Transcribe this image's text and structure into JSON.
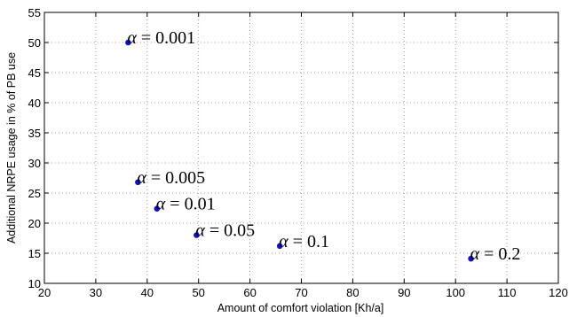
{
  "chart_data": {
    "type": "scatter",
    "title": "",
    "xlabel": "Amount of comfort violation [Kh/a]",
    "ylabel": "Additional NRPE usage in % of PB use",
    "xlim": [
      20,
      120
    ],
    "ylim": [
      10,
      55
    ],
    "xticks": [
      20,
      30,
      40,
      50,
      60,
      70,
      80,
      90,
      100,
      110,
      120
    ],
    "yticks": [
      10,
      15,
      20,
      25,
      30,
      35,
      40,
      45,
      50,
      55
    ],
    "grid": true,
    "point_color": "#1010d8",
    "points": [
      {
        "x": 36.3,
        "y": 50.0,
        "label_symbol": "α",
        "label_text": " = 0.001"
      },
      {
        "x": 38.2,
        "y": 26.8,
        "label_symbol": "α",
        "label_text": " = 0.005"
      },
      {
        "x": 41.9,
        "y": 22.4,
        "label_symbol": "α",
        "label_text": " = 0.01"
      },
      {
        "x": 49.6,
        "y": 18.0,
        "label_symbol": "α",
        "label_text": " = 0.05"
      },
      {
        "x": 65.8,
        "y": 16.2,
        "label_symbol": "α",
        "label_text": " = 0.1"
      },
      {
        "x": 103.0,
        "y": 14.1,
        "label_symbol": "α",
        "label_text": " = 0.2"
      }
    ]
  }
}
